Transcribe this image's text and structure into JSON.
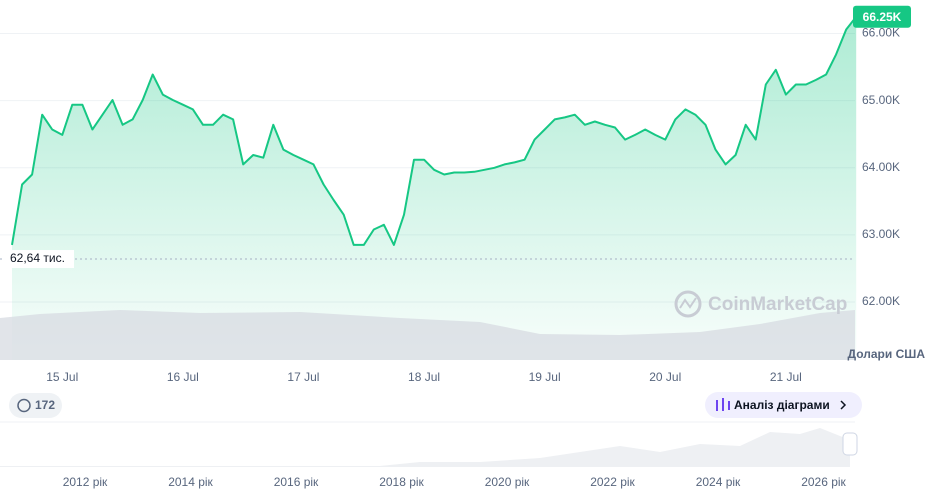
{
  "chart_data": {
    "type": "line",
    "categories": [
      null,
      null,
      null,
      null,
      null,
      "15 Jul",
      null,
      null,
      null,
      null,
      null,
      null,
      null,
      null,
      null,
      null,
      null,
      "16 Jul",
      null,
      null,
      null,
      null,
      null,
      null,
      null,
      null,
      null,
      null,
      null,
      "17 Jul",
      null,
      null,
      null,
      null,
      null,
      null,
      null,
      null,
      null,
      null,
      null,
      "18 Jul",
      null,
      null,
      null,
      null,
      null,
      null,
      null,
      null,
      null,
      null,
      null,
      "19 Jul",
      null,
      null,
      null,
      null,
      null,
      null,
      null,
      null,
      null,
      null,
      null,
      "20 Jul",
      null,
      null,
      null,
      null,
      null,
      null,
      null,
      null,
      null,
      null,
      null,
      "21 Jul",
      null,
      null,
      null,
      null,
      null,
      null,
      null
    ],
    "values": [
      62850,
      63750,
      63900,
      64790,
      64570,
      64490,
      64940,
      64940,
      64570,
      64790,
      65010,
      64640,
      64720,
      65010,
      65390,
      65090,
      65010,
      64940,
      64870,
      64640,
      64640,
      64790,
      64720,
      64050,
      64190,
      64150,
      64640,
      64270,
      64190,
      64120,
      64050,
      63750,
      63520,
      63300,
      62850,
      62850,
      63080,
      63150,
      62850,
      63300,
      64120,
      64120,
      63970,
      63900,
      63930,
      63930,
      63940,
      63970,
      64000,
      64050,
      64080,
      64120,
      64420,
      64570,
      64720,
      64750,
      64790,
      64640,
      64690,
      64640,
      64600,
      64420,
      64490,
      64570,
      64490,
      64420,
      64720,
      64870,
      64790,
      64640,
      64270,
      64050,
      64190,
      64640,
      64420,
      65240,
      65460,
      65090,
      65240,
      65240,
      65310,
      65390,
      65690,
      66060,
      66250
    ],
    "color": "#16c784",
    "ylim": [
      61150,
      66500
    ],
    "yticks": [
      {
        "value": 62000,
        "label": "62.00K"
      },
      {
        "value": 63000,
        "label": "63.00K"
      },
      {
        "value": 64000,
        "label": "64.00K"
      },
      {
        "value": 65000,
        "label": "65.00K"
      },
      {
        "value": 66000,
        "label": "66.00K"
      }
    ],
    "grid": true,
    "y_axis_label": "Долари США",
    "last_price": {
      "value": 66250,
      "label": "66.25K"
    },
    "reference": {
      "value": 62640,
      "label": "62,64 тис."
    },
    "watermark": "CoinMarketCap"
  },
  "ui": {
    "history_count": "172",
    "analysis_button": "Аналіз діаграми",
    "navigator_labels": [
      "2012 рік",
      "2014 рік",
      "2016 рік",
      "2018 рік",
      "2020 рік",
      "2022 рік",
      "2024 рік",
      "2026 рік"
    ]
  }
}
